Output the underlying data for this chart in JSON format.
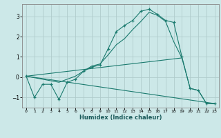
{
  "title": "",
  "xlabel": "Humidex (Indice chaleur)",
  "ylabel": "",
  "bg_color": "#cce8e8",
  "line_color": "#1a7a6e",
  "grid_color": "#b0cccc",
  "xlim": [
    -0.5,
    23.5
  ],
  "ylim": [
    -1.5,
    3.6
  ],
  "xticks": [
    0,
    1,
    2,
    3,
    4,
    5,
    6,
    7,
    8,
    9,
    10,
    11,
    12,
    13,
    14,
    15,
    16,
    17,
    18,
    19,
    20,
    21,
    22,
    23
  ],
  "yticks": [
    -1,
    0,
    1,
    2,
    3
  ],
  "line1_x": [
    0,
    1,
    2,
    3,
    4,
    5,
    6,
    7,
    8,
    9,
    10,
    11,
    12,
    13,
    14,
    15,
    16,
    17,
    18,
    19,
    20,
    21,
    22,
    23
  ],
  "line1_y": [
    0.05,
    -1.0,
    -0.35,
    -0.35,
    -1.1,
    -0.25,
    -0.1,
    0.3,
    0.5,
    0.6,
    1.4,
    2.25,
    2.55,
    2.8,
    3.25,
    3.35,
    3.1,
    2.8,
    2.7,
    1.0,
    -0.55,
    -0.65,
    -1.3,
    -1.3
  ],
  "line2_x": [
    0,
    4,
    5,
    6,
    7,
    8,
    9,
    10,
    11,
    12,
    13,
    14,
    15,
    16,
    17,
    18,
    19,
    20,
    21,
    22,
    23
  ],
  "line2_y": [
    0.05,
    -0.25,
    -0.1,
    0.05,
    0.3,
    0.55,
    0.65,
    1.1,
    1.6,
    1.9,
    2.35,
    2.75,
    3.2,
    3.05,
    2.75,
    1.75,
    0.95,
    -0.55,
    -0.65,
    -1.3,
    -1.3
  ],
  "line3_x": [
    0,
    23
  ],
  "line3_y": [
    0.05,
    -1.3
  ],
  "line4_x": [
    0,
    19
  ],
  "line4_y": [
    0.05,
    0.95
  ]
}
